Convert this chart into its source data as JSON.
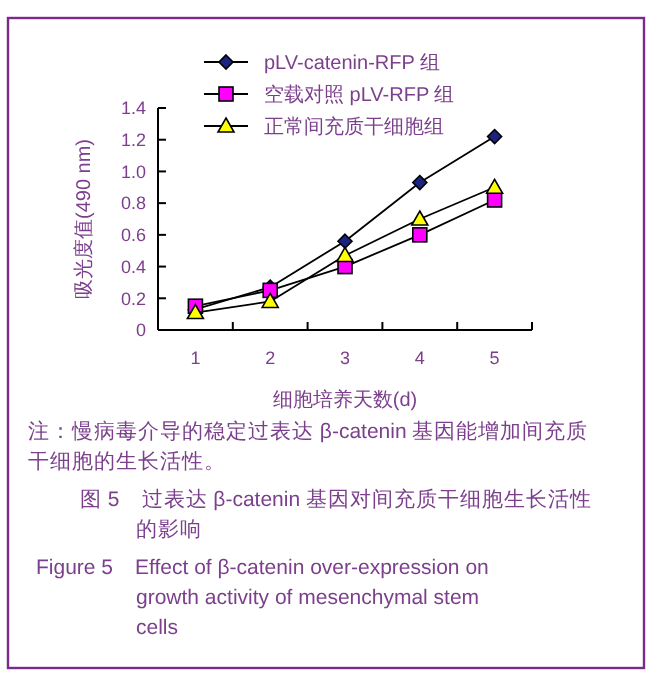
{
  "chart_data": {
    "type": "line",
    "xlabel": "细胞培养天数(d)",
    "ylabel": "吸光度值(490 nm)",
    "categories": [
      "1",
      "2",
      "3",
      "4",
      "5"
    ],
    "ylim": [
      0,
      1.4
    ],
    "yticks": [
      {
        "value": 0,
        "label": "0"
      },
      0.2,
      0.4,
      0.6,
      0.8,
      {
        "value": 1,
        "label": "1.0"
      },
      1.2,
      1.4
    ],
    "legend": "top",
    "grid": false,
    "line_style": "solid",
    "series": [
      {
        "name": "pLV-catenin-RFP 组",
        "color": "#1a237e",
        "marker": "diamond",
        "values": [
          0.13,
          0.27,
          0.56,
          0.93,
          1.22
        ]
      },
      {
        "name": "空载对照 pLV-RFP 组",
        "color": "#ff00ff",
        "marker": "square",
        "values": [
          0.15,
          0.25,
          0.4,
          0.6,
          0.82
        ]
      },
      {
        "name": "正常间充质干细胞组",
        "color": "#ffff00",
        "marker": "triangle",
        "values": [
          0.11,
          0.18,
          0.47,
          0.7,
          0.9
        ]
      }
    ],
    "annotations": [
      "注：慢病毒介导的稳定过表达 β-catenin 基因能增加间充质干细胞的生长活性。",
      "图 5　过表达 β-catenin 基因对间充质干细胞生长活性的影响",
      "Figure 5　Effect of β-catenin over-expression on growth activity of mesenchymal stem cells"
    ]
  }
}
